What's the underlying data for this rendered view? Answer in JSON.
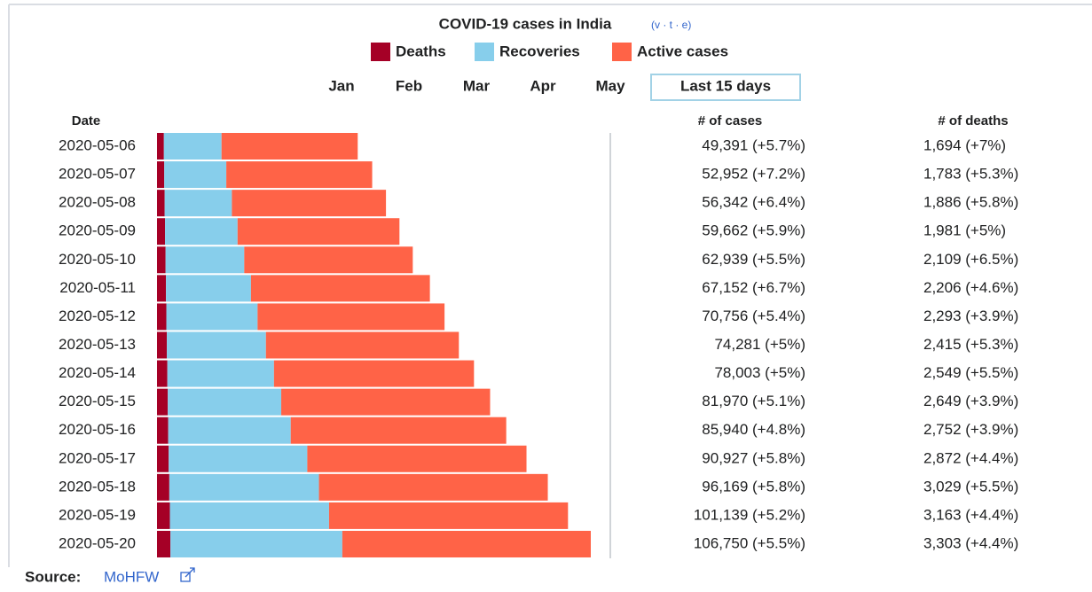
{
  "chart_data": {
    "type": "bar",
    "orientation": "horizontal",
    "stacked": true,
    "title": "COVID-19 cases in India",
    "navbar": "(v · t · e)",
    "buttons": [
      "Jan",
      "Feb",
      "Mar",
      "Apr",
      "May",
      "Last 15 days"
    ],
    "column_headers": {
      "date": "Date",
      "cases": "# of cases",
      "deaths": "# of deaths"
    },
    "categories": [
      "2020-05-06",
      "2020-05-07",
      "2020-05-08",
      "2020-05-09",
      "2020-05-10",
      "2020-05-11",
      "2020-05-12",
      "2020-05-13",
      "2020-05-14",
      "2020-05-15",
      "2020-05-16",
      "2020-05-17",
      "2020-05-18",
      "2020-05-19",
      "2020-05-20"
    ],
    "series": [
      {
        "name": "Deaths",
        "color": "#a50026",
        "values": [
          1694,
          1783,
          1886,
          1981,
          2109,
          2206,
          2293,
          2415,
          2549,
          2649,
          2752,
          2872,
          3029,
          3163,
          3303
        ]
      },
      {
        "name": "Recoveries",
        "color": "#87ceeb",
        "values": [
          14183,
          15267,
          16540,
          17847,
          19358,
          20917,
          22455,
          24386,
          26235,
          27920,
          30153,
          34109,
          36824,
          39174,
          42298
        ]
      },
      {
        "name": "Active cases",
        "color": "#ff6347",
        "values": [
          33514,
          35902,
          37916,
          39834,
          41472,
          44029,
          46008,
          47480,
          49219,
          51401,
          53035,
          53946,
          56316,
          58802,
          61149
        ]
      }
    ],
    "cases_labels": [
      "49,391 (+5.7%)",
      "52,952 (+7.2%)",
      "56,342 (+6.4%)",
      "59,662 (+5.9%)",
      "62,939 (+5.5%)",
      "67,152 (+6.7%)",
      "70,756 (+5.4%)",
      "74,281 (+5%)",
      "78,003 (+5%)",
      "81,970 (+5.1%)",
      "85,940 (+4.8%)",
      "90,927 (+5.8%)",
      "96,169 (+5.8%)",
      "101,139 (+5.2%)",
      "106,750 (+5.5%)"
    ],
    "deaths_labels": [
      "1,694 (+7%)",
      "1,783 (+5.3%)",
      "1,886 (+5.8%)",
      "1,981 (+5%)",
      "2,109 (+6.5%)",
      "2,206 (+4.6%)",
      "2,293 (+3.9%)",
      "2,415 (+5.3%)",
      "2,549 (+5.5%)",
      "2,649 (+3.9%)",
      "2,752 (+3.9%)",
      "2,872 (+4.4%)",
      "3,029 (+5.5%)",
      "3,163 (+4.4%)",
      "3,303 (+4.4%)"
    ],
    "source_label": "Source:",
    "source": "MoHFW"
  }
}
